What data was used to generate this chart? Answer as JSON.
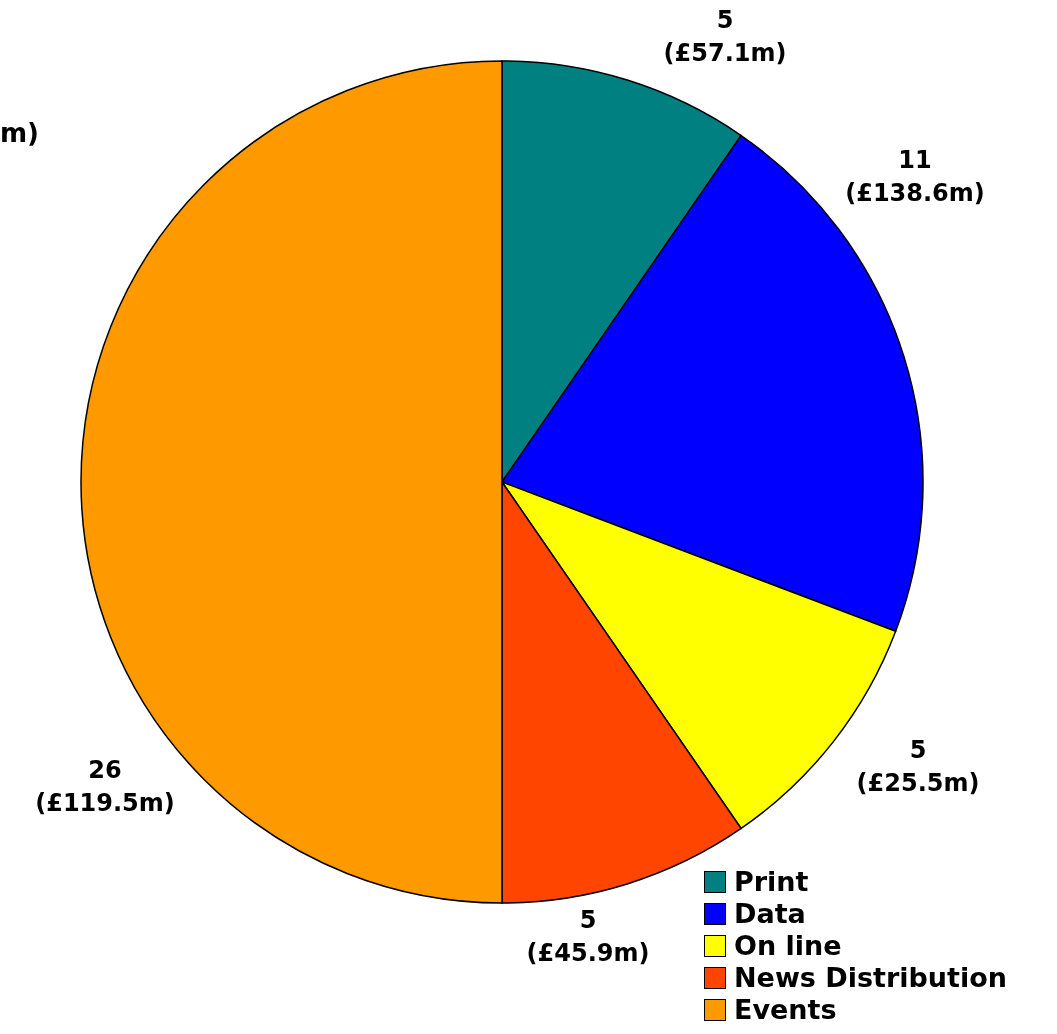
{
  "chart_data": {
    "type": "pie",
    "categories": [
      "Print",
      "Data",
      "On line",
      "News Distribution",
      "Events"
    ],
    "values": [
      5,
      11,
      5,
      5,
      26
    ],
    "colors": [
      "#008080",
      "#0000ff",
      "#ffff00",
      "#ff4500",
      "#ff9900"
    ],
    "value_labels": [
      "5 (£57.1m)",
      "11 (£138.6m)",
      "5 (£25.5m)",
      "5 (£45.9m)",
      "26 (£119.5m)"
    ],
    "legend": "bottom right",
    "annotations": [
      "m)"
    ]
  }
}
